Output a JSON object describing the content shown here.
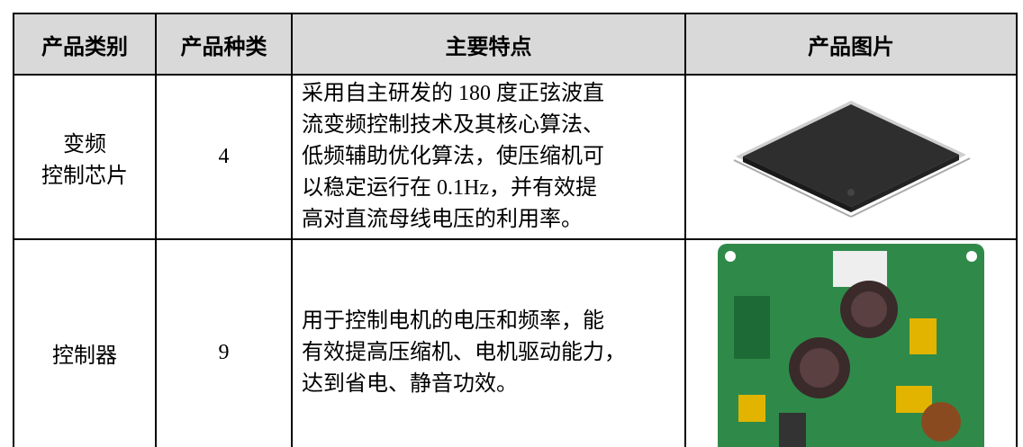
{
  "table": {
    "header": [
      "产品类别",
      "产品种类",
      "主要特点",
      "产品图片"
    ],
    "rows": [
      [
        [
          "变频",
          "控制芯片"
        ],
        "4",
        [
          "采用自主研发的 180 度正弦波直",
          "流变频控制技术及其核心算法、",
          "低频辅助优化算法，使压缩机可",
          "以稳定运行在 0.1Hz，并有效提",
          "高对直流母线电压的利用率。"
        ]
      ],
      [
        "控制器",
        "9",
        [
          "用于控制电机的电压和频率，能",
          "有效提高压缩机、电机驱动能力，",
          "达到省电、静音功效。"
        ]
      ]
    ]
  }
}
